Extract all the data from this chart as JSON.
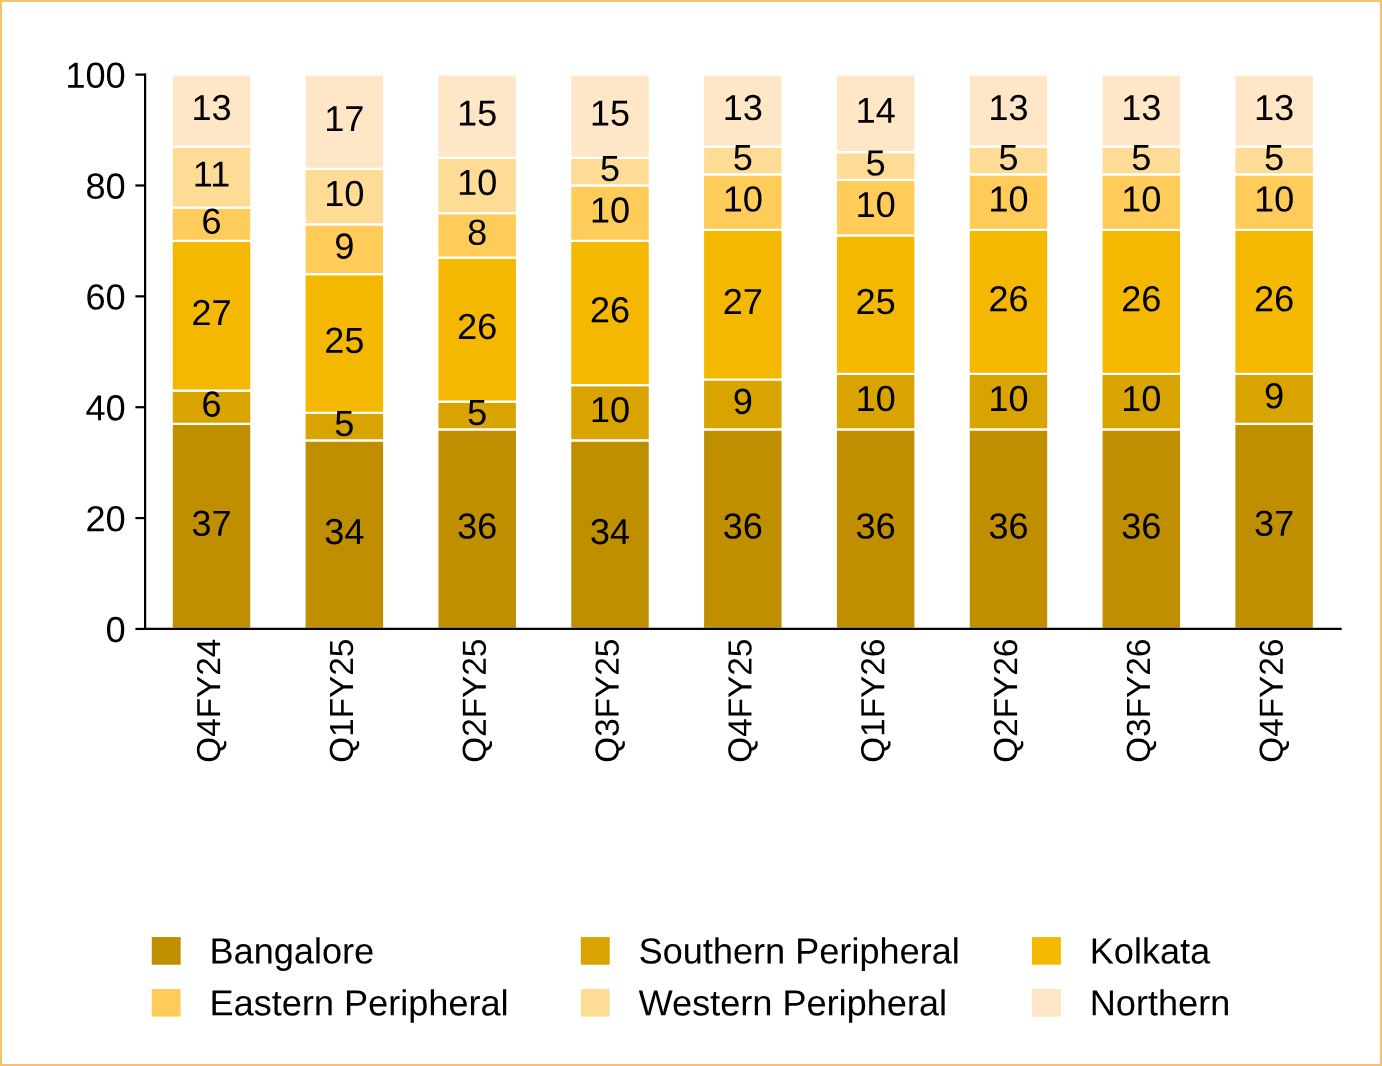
{
  "chart_data": {
    "type": "bar",
    "stacked": true,
    "categories": [
      "Q4FY24",
      "Q1FY25",
      "Q2FY25",
      "Q3FY25",
      "Q4FY25",
      "Q1FY26",
      "Q2FY26",
      "Q3FY26",
      "Q4FY26"
    ],
    "series": [
      {
        "name": "Bangalore",
        "color": "#bf8f00",
        "values": [
          37,
          34,
          36,
          34,
          36,
          36,
          36,
          36,
          37
        ]
      },
      {
        "name": "Southern Peripheral",
        "color": "#d9a300",
        "values": [
          6,
          5,
          5,
          10,
          9,
          10,
          10,
          10,
          9
        ]
      },
      {
        "name": "Kolkata",
        "color": "#f5b800",
        "values": [
          27,
          25,
          26,
          26,
          27,
          25,
          26,
          26,
          26
        ]
      },
      {
        "name": "Eastern Peripheral",
        "color": "#ffcb59",
        "values": [
          6,
          9,
          8,
          10,
          10,
          10,
          10,
          10,
          10
        ]
      },
      {
        "name": "Western Peripheral",
        "color": "#ffdc96",
        "values": [
          11,
          10,
          10,
          5,
          5,
          5,
          5,
          5,
          5
        ]
      },
      {
        "name": "Northern",
        "color": "#ffe6c6",
        "values": [
          13,
          17,
          15,
          15,
          13,
          14,
          13,
          13,
          13
        ]
      }
    ],
    "ylim": [
      0,
      100
    ],
    "yticks": [
      0,
      20,
      40,
      60,
      80,
      100
    ],
    "data_labels": true,
    "legend": "bottom",
    "grid": false
  }
}
